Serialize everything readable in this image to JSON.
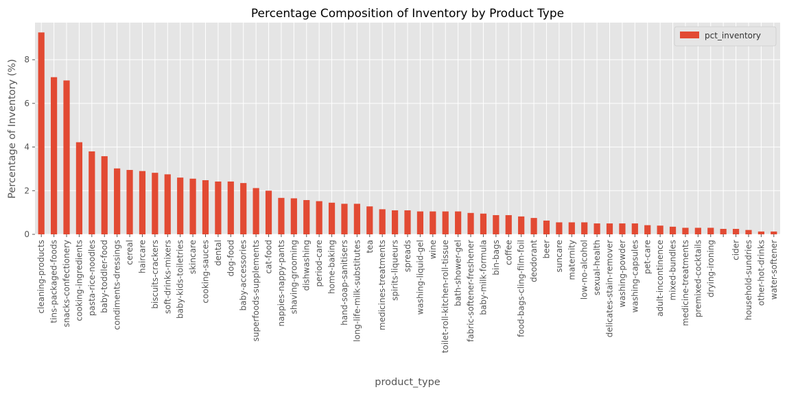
{
  "chart_data": {
    "type": "bar",
    "title": "Percentage Composition of Inventory by Product Type",
    "xlabel": "product_type",
    "ylabel": "Percentage of Inventory (%)",
    "ylim": [
      0,
      9.7
    ],
    "yticks": [
      "0",
      "2",
      "4",
      "6",
      "8"
    ],
    "grid": true,
    "legend_position": "top-right",
    "colors": {
      "bar": "#E24A33",
      "plot_bg": "#E5E5E5",
      "grid": "#FFFFFF"
    },
    "categories": [
      "cleaning-products",
      "tins-packaged-foods",
      "snacks-confectionery",
      "cooking-ingredients",
      "pasta-rice-noodles",
      "baby-toddler-food",
      "condiments-dressings",
      "cereal",
      "haircare",
      "biscuits-crackers",
      "soft-drinks-mixers",
      "baby-kids-toiletries",
      "skincare",
      "cooking-sauces",
      "dental",
      "dog-food",
      "baby-accessories",
      "superfoods-supplements",
      "cat-food",
      "nappies-nappy-pants",
      "shaving-grooming",
      "dishwashing",
      "period-care",
      "home-baking",
      "hand-soap-sanitisers",
      "long-life-milk-substitutes",
      "tea",
      "medicines-treatments",
      "spirits-liqueurs",
      "spreads",
      "washing-liquid-gel",
      "wine",
      "toilet-roll-kitchen-roll-tissue",
      "bath-shower-gel",
      "fabric-softener-freshener",
      "baby-milk-formula",
      "bin-bags",
      "coffee",
      "food-bags-cling-film-foil",
      "deodorant",
      "beer",
      "suncare",
      "maternity",
      "low-no-alcohol",
      "sexual-health",
      "delicates-stain-remover",
      "washing-powder",
      "washing-capsules",
      "pet-care",
      "adult-incontinence",
      "mixed-bundles",
      "medicine-treatments",
      "premixed-cocktails",
      "drying-ironing",
      "",
      "cider",
      "household-sundries",
      "other-hot-drinks",
      "water-softener"
    ],
    "series": [
      {
        "name": "pct_inventory",
        "values": [
          9.25,
          7.2,
          7.05,
          4.22,
          3.8,
          3.58,
          3.02,
          2.95,
          2.9,
          2.82,
          2.75,
          2.6,
          2.55,
          2.48,
          2.42,
          2.42,
          2.35,
          2.12,
          2.0,
          1.67,
          1.65,
          1.57,
          1.52,
          1.45,
          1.4,
          1.4,
          1.28,
          1.15,
          1.1,
          1.1,
          1.05,
          1.05,
          1.05,
          1.05,
          0.98,
          0.95,
          0.88,
          0.88,
          0.82,
          0.75,
          0.63,
          0.55,
          0.55,
          0.55,
          0.5,
          0.5,
          0.5,
          0.5,
          0.42,
          0.4,
          0.35,
          0.3,
          0.3,
          0.3,
          0.25,
          0.25,
          0.2,
          0.13,
          0.13
        ]
      }
    ]
  }
}
